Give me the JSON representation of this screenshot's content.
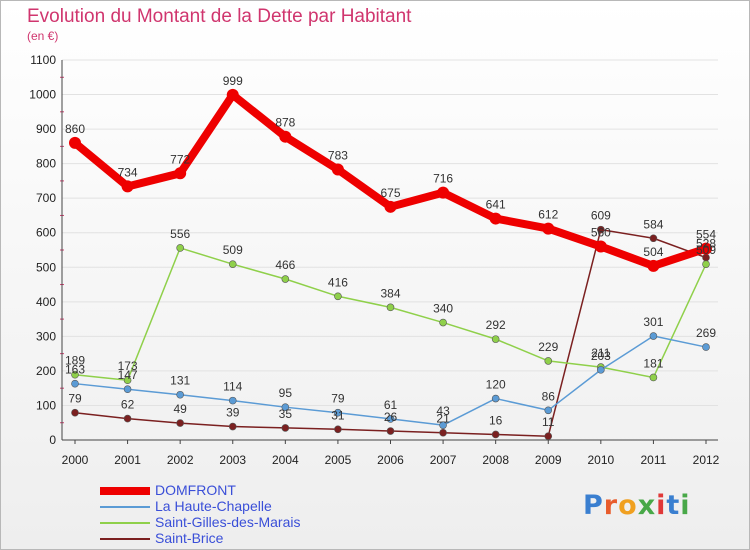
{
  "title": "Evolution du Montant de la Dette par Habitant",
  "unit": "(en €)",
  "logo": {
    "text": "Proxiti",
    "colors": [
      "#3a7fd0",
      "#e85c2c",
      "#f0a020",
      "#48a848",
      "#e03838",
      "#3a7fd0",
      "#48a848"
    ]
  },
  "chart_data": {
    "type": "line",
    "categories": [
      "2000",
      "2001",
      "2002",
      "2003",
      "2004",
      "2005",
      "2006",
      "2007",
      "2008",
      "2009",
      "2010",
      "2011",
      "2012"
    ],
    "ylim": [
      0,
      1100
    ],
    "yticks": [
      0,
      100,
      200,
      300,
      400,
      500,
      600,
      700,
      800,
      900,
      1000,
      1100
    ],
    "grid": "horizontal",
    "legend_position": "bottom-left",
    "series": [
      {
        "name": "DOMFRONT",
        "color": "#ee0000",
        "values": [
          860,
          734,
          772,
          999,
          878,
          783,
          675,
          716,
          641,
          612,
          560,
          504,
          554
        ],
        "labels": [
          "860",
          "734",
          "772",
          "999",
          "878",
          "783",
          "675",
          "716",
          "641",
          "612",
          "560",
          "504",
          "554"
        ]
      },
      {
        "name": "La Haute-Chapelle",
        "color": "#5b9bd5",
        "values": [
          163,
          147,
          131,
          114,
          95,
          79,
          61,
          43,
          120,
          86,
          203,
          301,
          269
        ],
        "labels": [
          "163",
          "147",
          "131",
          "114",
          "95",
          "79",
          "61",
          "43",
          "120",
          "86",
          "203",
          "301",
          "269"
        ]
      },
      {
        "name": "Saint-Gilles-des-Marais",
        "color": "#8fd04a",
        "values": [
          189,
          173,
          556,
          509,
          466,
          416,
          384,
          340,
          292,
          229,
          211,
          181,
          509
        ],
        "labels": [
          "189",
          "173",
          "556",
          "509",
          "466",
          "416",
          "384",
          "340",
          "292",
          "229",
          "211",
          "181",
          "509"
        ]
      },
      {
        "name": "Saint-Brice",
        "color": "#7b2020",
        "values": [
          79,
          62,
          49,
          39,
          35,
          31,
          26,
          21,
          16,
          11,
          609,
          584,
          528
        ],
        "labels": [
          "79",
          "62",
          "49",
          "39",
          "35",
          "31",
          "26",
          "21",
          "16",
          "11",
          "609",
          "584",
          "528"
        ]
      }
    ]
  }
}
